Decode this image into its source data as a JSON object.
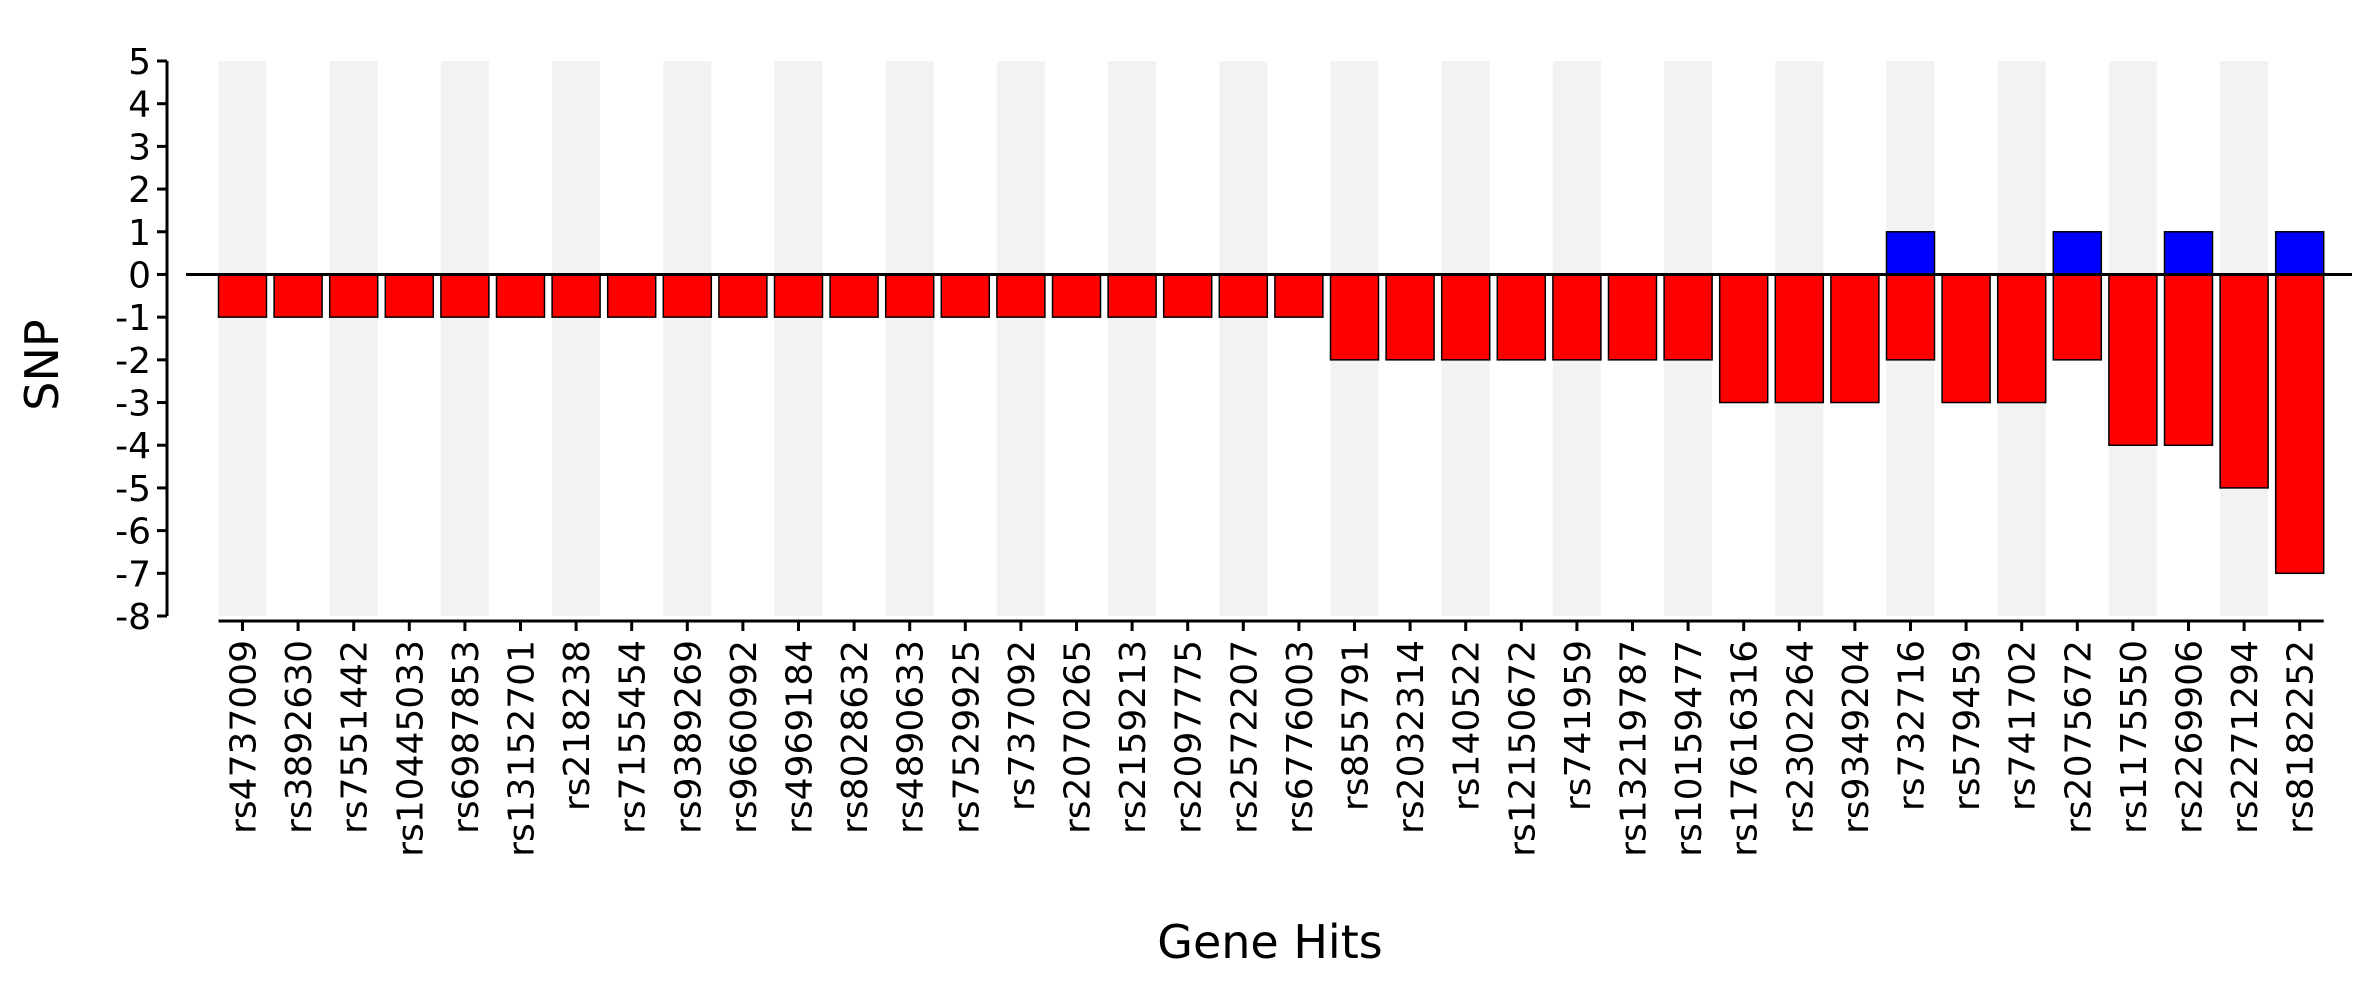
{
  "chart_data": {
    "type": "bar",
    "title": "",
    "xlabel": "Gene Hits",
    "ylabel": "SNP",
    "ylim": [
      -8,
      5
    ],
    "yticks": [
      5,
      4,
      3,
      2,
      1,
      0,
      -1,
      -2,
      -3,
      -4,
      -5,
      -6,
      -7,
      -8
    ],
    "grid": false,
    "band_color": "#f2f2f2",
    "categories": [
      "rs4737009",
      "rs3892630",
      "rs7551442",
      "rs10445033",
      "rs6987853",
      "rs13152701",
      "rs218238",
      "rs7155454",
      "rs9389269",
      "rs9660992",
      "rs4969184",
      "rs8028632",
      "rs4890633",
      "rs7529925",
      "rs737092",
      "rs2070265",
      "rs2159213",
      "rs2097775",
      "rs2572207",
      "rs6776003",
      "rs855791",
      "rs2032314",
      "rs140522",
      "rs12150672",
      "rs741959",
      "rs13219787",
      "rs10159477",
      "rs17616316",
      "rs2302264",
      "rs9349204",
      "rs732716",
      "rs579459",
      "rs741702",
      "rs2075672",
      "rs1175550",
      "rs2269906",
      "rs2271294",
      "rs8182252"
    ],
    "series": [
      {
        "color": "#ff0000",
        "values": [
          -1,
          -1,
          -1,
          -1,
          -1,
          -1,
          -1,
          -1,
          -1,
          -1,
          -1,
          -1,
          -1,
          -1,
          -1,
          -1,
          -1,
          -1,
          -1,
          -1,
          -2,
          -2,
          -2,
          -2,
          -2,
          -2,
          -2,
          -3,
          -3,
          -3,
          -2,
          -3,
          -3,
          -2,
          -4,
          -4,
          -5,
          -7
        ]
      },
      {
        "color": "#0000ff",
        "values": [
          0,
          0,
          0,
          0,
          0,
          0,
          0,
          0,
          0,
          0,
          0,
          0,
          0,
          0,
          0,
          0,
          0,
          0,
          0,
          0,
          0,
          0,
          0,
          0,
          0,
          0,
          0,
          0,
          0,
          0,
          1,
          0,
          0,
          1,
          0,
          1,
          0,
          1
        ]
      }
    ]
  }
}
